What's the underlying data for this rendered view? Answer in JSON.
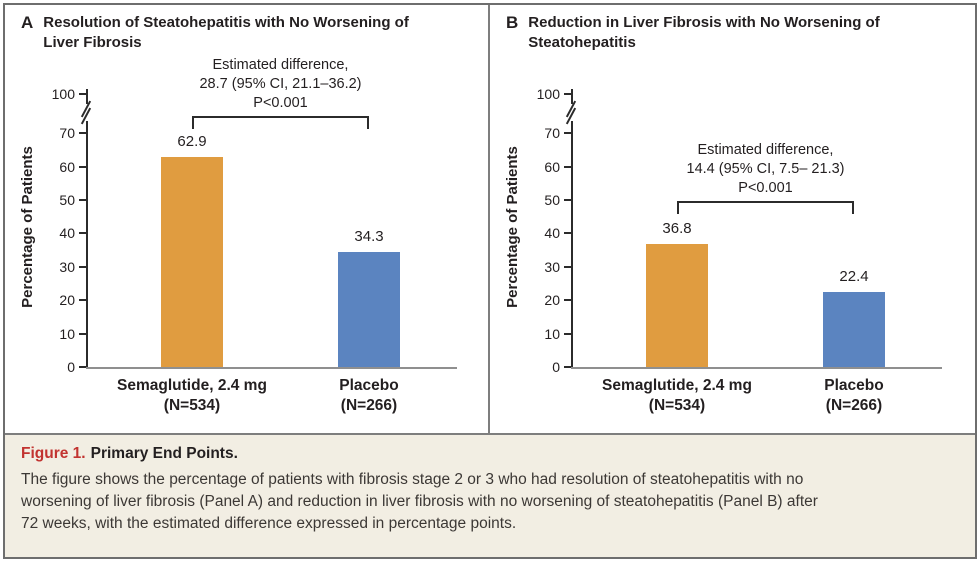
{
  "figure": {
    "caption_label": "Figure 1.",
    "caption_title": "Primary End Points.",
    "caption_body_lines": [
      "The figure shows the percentage of patients with fibrosis stage 2 or 3 who had resolution of steatohepatitis with no",
      "worsening of liver fibrosis (Panel A) and reduction in liver fibrosis with no worsening of steatohepatitis (Panel B) after",
      "72 weeks, with the estimated difference expressed in percentage points."
    ]
  },
  "colors": {
    "semaglutide_bar": "#E09C40",
    "placebo_bar": "#5B84C0",
    "figure_label_red": "#C23330",
    "caption_background": "#F2EEE3",
    "border_gray": "#6E6E6E",
    "axis_black": "#2B2B2B",
    "baseline_gray": "#8F8F8F"
  },
  "chart_data": [
    {
      "type": "bar",
      "panel_label": "A",
      "title_lines": [
        "Resolution of Steatohepatitis with No Worsening of",
        "Liver Fibrosis"
      ],
      "ylabel": "Percentage of Patients",
      "yticks": [
        0,
        10,
        20,
        30,
        40,
        50,
        60,
        70
      ],
      "ytop_tick": 100,
      "axis_break": true,
      "grid": false,
      "categories": [
        {
          "name": "Semaglutide, 2.4 mg",
          "n": "(N=534)"
        },
        {
          "name": "Placebo",
          "n": "(N=266)"
        }
      ],
      "values": [
        62.9,
        34.3
      ],
      "value_labels": [
        "62.9",
        "34.3"
      ],
      "bar_color_keys": [
        "semaglutide_bar",
        "placebo_bar"
      ],
      "annotation_lines": [
        "Estimated difference,",
        "28.7 (95% CI, 21.1–36.2)",
        "P<0.001"
      ]
    },
    {
      "type": "bar",
      "panel_label": "B",
      "title_lines": [
        "Reduction in Liver Fibrosis with No Worsening of",
        "Steatohepatitis"
      ],
      "ylabel": "Percentage of Patients",
      "yticks": [
        0,
        10,
        20,
        30,
        40,
        50,
        60,
        70
      ],
      "ytop_tick": 100,
      "axis_break": true,
      "grid": false,
      "categories": [
        {
          "name": "Semaglutide, 2.4 mg",
          "n": "(N=534)"
        },
        {
          "name": "Placebo",
          "n": "(N=266)"
        }
      ],
      "values": [
        36.8,
        22.4
      ],
      "value_labels": [
        "36.8",
        "22.4"
      ],
      "bar_color_keys": [
        "semaglutide_bar",
        "placebo_bar"
      ],
      "annotation_lines": [
        "Estimated difference,",
        "14.4 (95% CI, 7.5– 21.3)",
        "P<0.001"
      ]
    }
  ]
}
